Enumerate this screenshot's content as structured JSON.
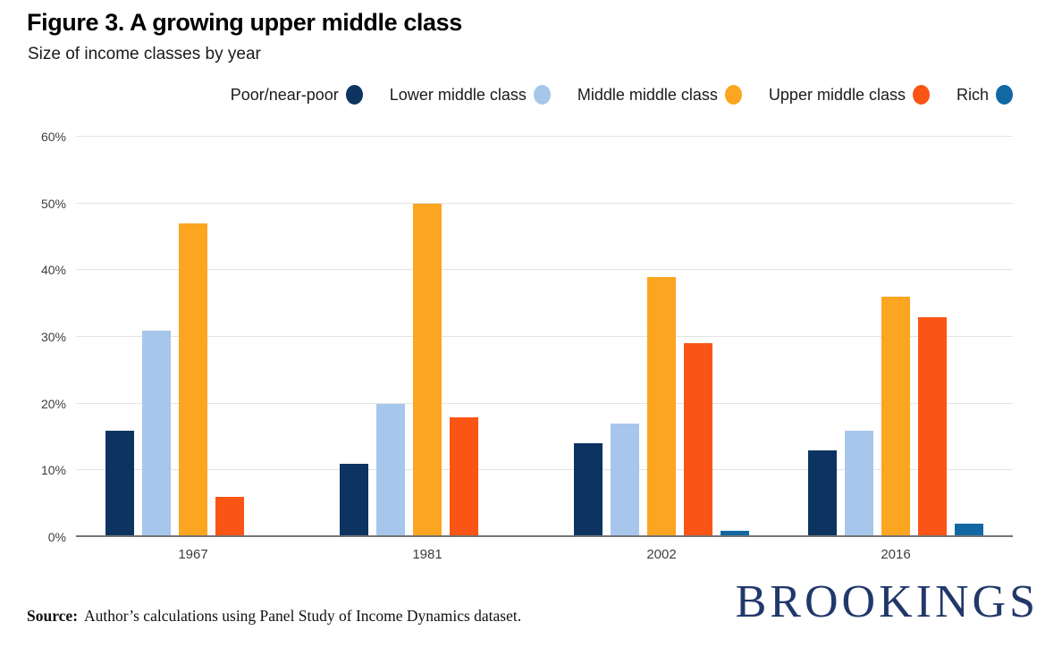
{
  "header": {
    "title": "Figure 3. A growing upper middle class",
    "subtitle": "Size of income classes by year"
  },
  "chart_data": {
    "type": "bar",
    "title": "Figure 3. A growing upper middle class",
    "subtitle": "Size of income classes by year",
    "categories": [
      "1967",
      "1981",
      "2002",
      "2016"
    ],
    "series": [
      {
        "name": "Poor/near-poor",
        "color": "#0d3461",
        "values": [
          16,
          11,
          14,
          13
        ]
      },
      {
        "name": "Lower middle class",
        "color": "#a7c6ec",
        "values": [
          31,
          20,
          17,
          16
        ]
      },
      {
        "name": "Middle middle class",
        "color": "#fca521",
        "values": [
          47,
          50,
          39,
          36
        ]
      },
      {
        "name": "Upper middle class",
        "color": "#fa5515",
        "values": [
          6,
          18,
          29,
          33
        ]
      },
      {
        "name": "Rich",
        "color": "#1268a3",
        "values": [
          0,
          0,
          1,
          2
        ]
      }
    ],
    "xlabel": "",
    "ylabel": "",
    "ylim": [
      0,
      60
    ],
    "yticks": [
      {
        "value": 0,
        "label": "0%"
      },
      {
        "value": 10,
        "label": "10%"
      },
      {
        "value": 20,
        "label": "20%"
      },
      {
        "value": 30,
        "label": "30%"
      },
      {
        "value": 40,
        "label": "40%"
      },
      {
        "value": 50,
        "label": "50%"
      },
      {
        "value": 60,
        "label": "60%"
      }
    ],
    "grid": true,
    "legend_position": "top-right"
  },
  "colors": {
    "background": "#ffffff",
    "gridline": "#e3e3e3",
    "baseline": "#757575",
    "axis_text": "#3d3d3d",
    "logo_navy": "#21386b"
  },
  "footer": {
    "source_label": "Source:",
    "source_text": "Author’s calculations using Panel Study of Income Dynamics dataset.",
    "logo_text": "BROOKINGS"
  }
}
